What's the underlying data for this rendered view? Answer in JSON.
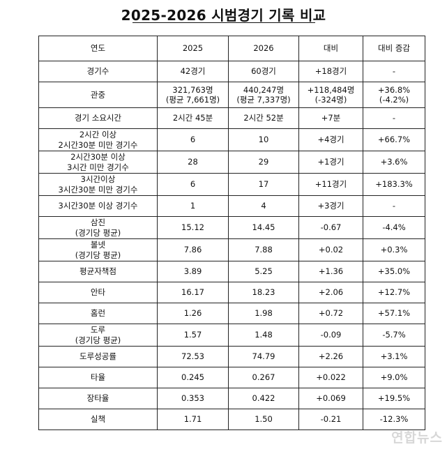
{
  "title": "2025-2026 시범경기 기록 비교",
  "header": [
    "연도",
    "2025",
    "2026",
    "대비",
    "대비 증감"
  ],
  "rows": [
    {
      "label": [
        "경기수"
      ],
      "y2025": [
        "42경기"
      ],
      "y2026": [
        "60경기"
      ],
      "diff": [
        "+18경기"
      ],
      "pct": [
        "-"
      ]
    },
    {
      "label": [
        "관중"
      ],
      "y2025": [
        "321,763명",
        "(평균 7,661명)"
      ],
      "y2026": [
        "440,247명",
        "(평균 7,337명)"
      ],
      "diff": [
        "+118,484명",
        "(-324명)"
      ],
      "pct": [
        "+36.8%",
        "(-4.2%)"
      ]
    },
    {
      "label": [
        "경기 소요시간"
      ],
      "y2025": [
        "2시간 45분"
      ],
      "y2026": [
        "2시간 52분"
      ],
      "diff": [
        "+7분"
      ],
      "pct": [
        "-"
      ]
    },
    {
      "label": [
        "2시간 이상",
        "2시간30분 미만 경기수"
      ],
      "y2025": [
        "6"
      ],
      "y2026": [
        "10"
      ],
      "diff": [
        "+4경기"
      ],
      "pct": [
        "+66.7%"
      ]
    },
    {
      "label": [
        "2시간30분 이상",
        "3시간 미만 경기수"
      ],
      "y2025": [
        "28"
      ],
      "y2026": [
        "29"
      ],
      "diff": [
        "+1경기"
      ],
      "pct": [
        "+3.6%"
      ]
    },
    {
      "label": [
        "3시간이상",
        "3시간30분 미만 경기수"
      ],
      "y2025": [
        "6"
      ],
      "y2026": [
        "17"
      ],
      "diff": [
        "+11경기"
      ],
      "pct": [
        "+183.3%"
      ]
    },
    {
      "label": [
        "3시간30분 이상 경기수"
      ],
      "y2025": [
        "1"
      ],
      "y2026": [
        "4"
      ],
      "diff": [
        "+3경기"
      ],
      "pct": [
        "-"
      ]
    },
    {
      "label": [
        "삼진",
        "(경기당 평균)"
      ],
      "y2025": [
        "15.12"
      ],
      "y2026": [
        "14.45"
      ],
      "diff": [
        "-0.67"
      ],
      "pct": [
        "-4.4%"
      ]
    },
    {
      "label": [
        "볼넷",
        "(경기당 평균)"
      ],
      "y2025": [
        "7.86"
      ],
      "y2026": [
        "7.88"
      ],
      "diff": [
        "+0.02"
      ],
      "pct": [
        "+0.3%"
      ]
    },
    {
      "label": [
        "평균자책점"
      ],
      "y2025": [
        "3.89"
      ],
      "y2026": [
        "5.25"
      ],
      "diff": [
        "+1.36"
      ],
      "pct": [
        "+35.0%"
      ]
    },
    {
      "label": [
        "안타"
      ],
      "y2025": [
        "16.17"
      ],
      "y2026": [
        "18.23"
      ],
      "diff": [
        "+2.06"
      ],
      "pct": [
        "+12.7%"
      ]
    },
    {
      "label": [
        "홈런"
      ],
      "y2025": [
        "1.26"
      ],
      "y2026": [
        "1.98"
      ],
      "diff": [
        "+0.72"
      ],
      "pct": [
        "+57.1%"
      ]
    },
    {
      "label": [
        "도루",
        "(경기당 평균)"
      ],
      "y2025": [
        "1.57"
      ],
      "y2026": [
        "1.48"
      ],
      "diff": [
        "-0.09"
      ],
      "pct": [
        "-5.7%"
      ]
    },
    {
      "label": [
        "도루성공률"
      ],
      "y2025": [
        "72.53"
      ],
      "y2026": [
        "74.79"
      ],
      "diff": [
        "+2.26"
      ],
      "pct": [
        "+3.1%"
      ]
    },
    {
      "label": [
        "타율"
      ],
      "y2025": [
        "0.245"
      ],
      "y2026": [
        "0.267"
      ],
      "diff": [
        "+0.022"
      ],
      "pct": [
        "+9.0%"
      ]
    },
    {
      "label": [
        "장타율"
      ],
      "y2025": [
        "0.353"
      ],
      "y2026": [
        "0.422"
      ],
      "diff": [
        "+0.069"
      ],
      "pct": [
        "+19.5%"
      ]
    },
    {
      "label": [
        "실책"
      ],
      "y2025": [
        "1.71"
      ],
      "y2026": [
        "1.50"
      ],
      "diff": [
        "-0.21"
      ],
      "pct": [
        "-12.3%"
      ]
    }
  ],
  "watermark": "연합뉴스"
}
